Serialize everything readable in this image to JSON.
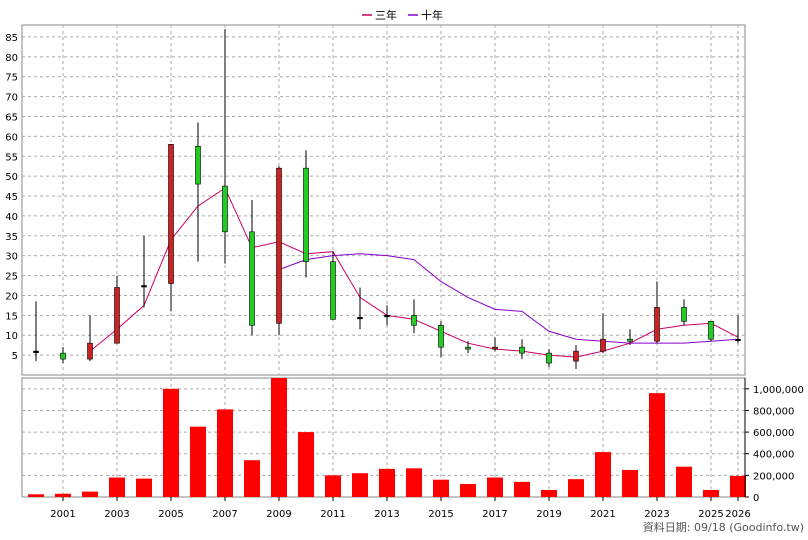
{
  "legend": [
    {
      "label": "三年",
      "color": "#cc0066"
    },
    {
      "label": "十年",
      "color": "#8800cc"
    }
  ],
  "footer_text": "資料日期: 09/18  (Goodinfo.tw)",
  "chart_data": [
    {
      "type": "candlestick",
      "title": "",
      "years": [
        2000,
        2001,
        2002,
        2003,
        2004,
        2005,
        2006,
        2007,
        2008,
        2009,
        2010,
        2011,
        2012,
        2013,
        2014,
        2015,
        2016,
        2017,
        2018,
        2019,
        2020,
        2021,
        2022,
        2023,
        2024,
        2025,
        2026
      ],
      "candles": [
        {
          "open": 6.0,
          "close": 6.0,
          "high": 18.5,
          "low": 3.5
        },
        {
          "open": 5.5,
          "close": 4.0,
          "high": 7.0,
          "low": 3.0
        },
        {
          "open": 4.0,
          "close": 8.0,
          "high": 15.0,
          "low": 3.5
        },
        {
          "open": 8.0,
          "close": 22.0,
          "high": 25.0,
          "low": 8.0
        },
        {
          "open": 22.5,
          "close": 22.5,
          "high": 35.0,
          "low": 17.0
        },
        {
          "open": 23.0,
          "close": 58.0,
          "high": 58.0,
          "low": 16.0
        },
        {
          "open": 57.5,
          "close": 48.0,
          "high": 63.5,
          "low": 28.5
        },
        {
          "open": 47.5,
          "close": 36.0,
          "high": 87.0,
          "low": 28.0
        },
        {
          "open": 36.0,
          "close": 12.5,
          "high": 44.0,
          "low": 10.0
        },
        {
          "open": 13.0,
          "close": 52.0,
          "high": 52.5,
          "low": 10.0
        },
        {
          "open": 52.0,
          "close": 28.5,
          "high": 56.5,
          "low": 24.5
        },
        {
          "open": 28.5,
          "close": 14.0,
          "high": 31.0,
          "low": 14.0
        },
        {
          "open": 14.5,
          "close": 14.5,
          "high": 22.0,
          "low": 11.5
        },
        {
          "open": 15.0,
          "close": 15.0,
          "high": 17.5,
          "low": 12.5
        },
        {
          "open": 15.0,
          "close": 12.5,
          "high": 19.0,
          "low": 10.5
        },
        {
          "open": 12.5,
          "close": 7.0,
          "high": 13.5,
          "low": 4.5
        },
        {
          "open": 7.0,
          "close": 6.5,
          "high": 8.5,
          "low": 5.5
        },
        {
          "open": 6.5,
          "close": 7.0,
          "high": 9.5,
          "low": 6.0
        },
        {
          "open": 7.0,
          "close": 5.5,
          "high": 9.0,
          "low": 4.0
        },
        {
          "open": 5.5,
          "close": 3.0,
          "high": 6.5,
          "low": 2.0
        },
        {
          "open": 3.5,
          "close": 6.0,
          "high": 7.5,
          "low": 1.5
        },
        {
          "open": 6.0,
          "close": 9.0,
          "high": 15.5,
          "low": 5.5
        },
        {
          "open": 9.0,
          "close": 8.5,
          "high": 11.5,
          "low": 7.5
        },
        {
          "open": 8.5,
          "close": 17.0,
          "high": 23.5,
          "low": 8.0
        },
        {
          "open": 17.0,
          "close": 13.5,
          "high": 19.0,
          "low": 12.5
        },
        {
          "open": 13.5,
          "close": 9.0,
          "high": 13.5,
          "low": 8.5
        },
        {
          "open": 9.0,
          "close": 9.0,
          "high": 15.0,
          "low": 8.0
        }
      ],
      "series": [
        {
          "name": "三年",
          "color": "#cc0066",
          "start_year": 2002,
          "values": [
            6.0,
            11.5,
            17.5,
            34.0,
            42.5,
            47.0,
            32.0,
            33.5,
            30.5,
            31.0,
            19.5,
            15.0,
            14.0,
            11.0,
            8.0,
            6.5,
            6.0,
            5.0,
            4.5,
            6.0,
            8.0,
            11.5,
            12.5,
            13.0,
            9.5
          ]
        },
        {
          "name": "十年",
          "color": "#8800cc",
          "start_year": 2009,
          "values": [
            26.5,
            29.0,
            30.0,
            30.5,
            30.0,
            29.0,
            23.5,
            19.5,
            16.5,
            16.0,
            11.0,
            9.0,
            8.5,
            8.0,
            8.0,
            8.0,
            8.5,
            9.0
          ]
        }
      ],
      "y_ticks": [
        5,
        10,
        15,
        20,
        25,
        30,
        35,
        40,
        45,
        50,
        55,
        60,
        65,
        70,
        75,
        80,
        85
      ],
      "ylim": [
        0,
        88
      ],
      "grid": true,
      "up_color": "#cc2222",
      "down_color": "#22cc22",
      "legend_position": "top-center"
    },
    {
      "type": "bar",
      "title": "",
      "categories": [
        2000,
        2001,
        2002,
        2003,
        2004,
        2005,
        2006,
        2007,
        2008,
        2009,
        2010,
        2011,
        2012,
        2013,
        2014,
        2015,
        2016,
        2017,
        2018,
        2019,
        2020,
        2021,
        2022,
        2023,
        2024,
        2025,
        2026
      ],
      "values": [
        25000,
        30000,
        50000,
        180000,
        170000,
        1000000,
        650000,
        810000,
        340000,
        1100000,
        600000,
        200000,
        220000,
        260000,
        265000,
        160000,
        120000,
        180000,
        140000,
        65000,
        165000,
        415000,
        250000,
        960000,
        280000,
        65000,
        195000
      ],
      "y_ticks": [
        0,
        200000,
        400000,
        600000,
        800000,
        1000000
      ],
      "y_tick_labels": [
        "0",
        "200,000",
        "400,000",
        "600,000",
        "800,000",
        "1,000,000"
      ],
      "ylim": [
        0,
        1100000
      ],
      "bar_color": "#ff0000",
      "grid": true
    }
  ],
  "x_ticks": [
    2001,
    2003,
    2005,
    2007,
    2009,
    2011,
    2013,
    2015,
    2017,
    2019,
    2021,
    2023,
    2025,
    2026
  ]
}
